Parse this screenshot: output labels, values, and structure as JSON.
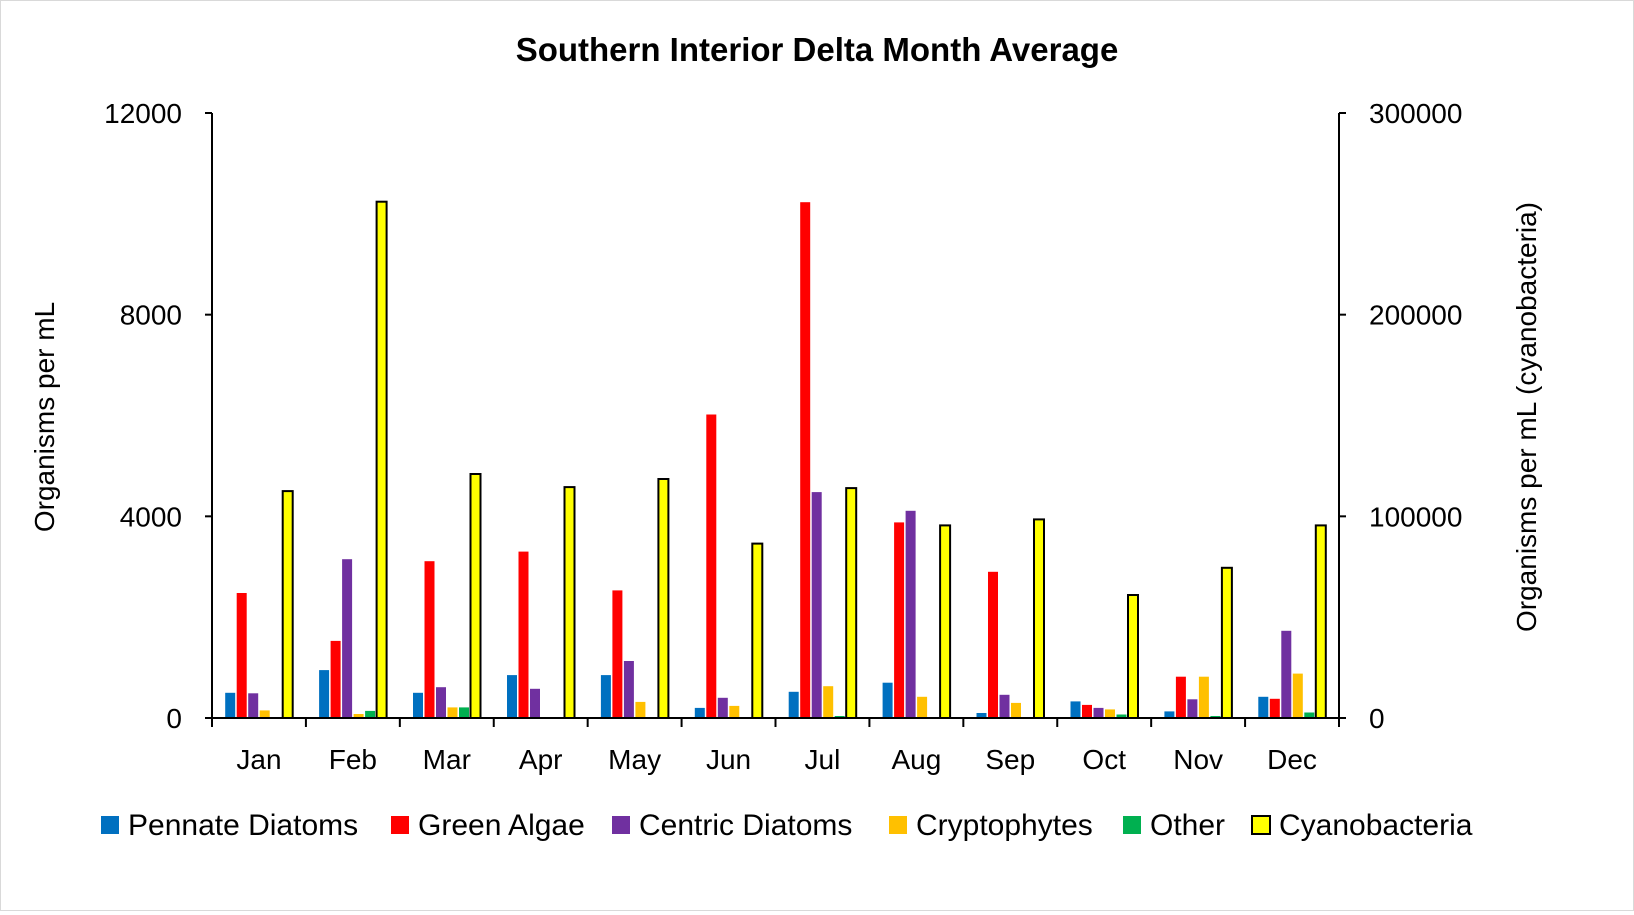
{
  "chart_data": {
    "type": "bar",
    "title": "Southern Interior Delta Month Average",
    "ylabel": "Organisms per mL",
    "y2label": "Organisms per mL (cyanobacteria)",
    "ylim": [
      0,
      12000
    ],
    "y2lim": [
      0,
      300000
    ],
    "yticks": [
      "0",
      "4000",
      "8000",
      "12000"
    ],
    "y2ticks": [
      "0",
      "100000",
      "200000",
      "300000"
    ],
    "categories": [
      "Jan",
      "Feb",
      "Mar",
      "Apr",
      "May",
      "Jun",
      "Jul",
      "Aug",
      "Sep",
      "Oct",
      "Nov",
      "Dec"
    ],
    "series": [
      {
        "name": "Pennate Diatoms",
        "color": "#0070c0",
        "axis": "left",
        "values": [
          500,
          950,
          500,
          850,
          850,
          200,
          520,
          700,
          100,
          330,
          130,
          420
        ]
      },
      {
        "name": "Green Algae",
        "color": "#ff0000",
        "axis": "left",
        "values": [
          2480,
          1530,
          3110,
          3300,
          2530,
          6020,
          10230,
          3880,
          2900,
          260,
          820,
          380
        ]
      },
      {
        "name": "Centric Diatoms",
        "color": "#7030a0",
        "axis": "left",
        "values": [
          490,
          3150,
          610,
          580,
          1130,
          400,
          4480,
          4110,
          460,
          200,
          370,
          1730
        ]
      },
      {
        "name": "Cryptophytes",
        "color": "#ffc000",
        "axis": "left",
        "values": [
          150,
          80,
          210,
          0,
          320,
          240,
          630,
          420,
          300,
          170,
          820,
          880
        ]
      },
      {
        "name": "Other",
        "color": "#00b050",
        "axis": "left",
        "values": [
          0,
          140,
          210,
          0,
          0,
          0,
          40,
          0,
          0,
          70,
          40,
          110
        ]
      },
      {
        "name": "Cyanobacteria",
        "color": "#ffff00",
        "border": "#000000",
        "axis": "right",
        "values": [
          112500,
          256000,
          121000,
          114500,
          118500,
          86500,
          114000,
          95500,
          98500,
          61000,
          74500,
          95500
        ]
      }
    ],
    "legend_position": "bottom",
    "grid": false
  }
}
